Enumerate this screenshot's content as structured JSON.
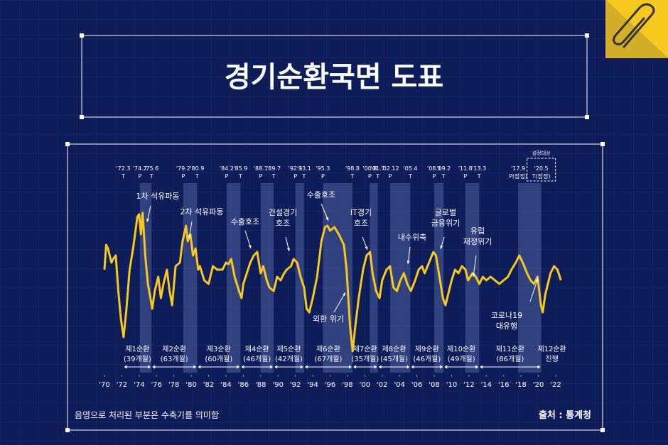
{
  "chart_data": {
    "type": "line",
    "title": "경기순환국면 도표",
    "color": "#f7c81e",
    "x": [
      1970.0,
      1970.2,
      1970.4,
      1970.8,
      1971.0,
      1971.3,
      1971.6,
      1971.9,
      1972.2,
      1972.5,
      1972.9,
      1973.3,
      1973.8,
      1974.0,
      1974.2,
      1974.4,
      1974.7,
      1975.0,
      1975.3,
      1975.5,
      1975.8,
      1976.2,
      1976.5,
      1976.8,
      1977.2,
      1977.5,
      1977.8,
      1978.2,
      1978.7,
      1979.0,
      1979.4,
      1979.6,
      1979.9,
      1980.2,
      1980.5,
      1980.8,
      1981.0,
      1981.5,
      1982.0,
      1982.5,
      1983.0,
      1983.6,
      1984.0,
      1984.3,
      1984.6,
      1985.0,
      1985.5,
      1985.8,
      1986.0,
      1986.4,
      1986.8,
      1987.2,
      1987.6,
      1988.0,
      1988.3,
      1988.7,
      1989.0,
      1989.5,
      1989.9,
      1990.3,
      1990.7,
      1991.0,
      1991.5,
      1991.8,
      1992.2,
      1992.6,
      1993.0,
      1993.3,
      1993.6,
      1994.0,
      1994.5,
      1995.0,
      1995.4,
      1995.7,
      1996.0,
      1996.5,
      1997.0,
      1997.6,
      1997.9,
      1998.3,
      1998.6,
      1998.9,
      1999.3,
      1999.8,
      2000.2,
      2000.6,
      2000.9,
      2001.3,
      2001.7,
      2002.0,
      2002.5,
      2002.9,
      2003.3,
      2003.7,
      2004.1,
      2004.5,
      2004.9,
      2005.3,
      2005.8,
      2006.2,
      2006.6,
      2006.9,
      2007.4,
      2007.9,
      2008.2,
      2008.6,
      2009.0,
      2009.3,
      2009.7,
      2010.0,
      2010.4,
      2010.8,
      2011.2,
      2011.6,
      2011.9,
      2012.4,
      2012.8,
      2013.2,
      2013.6,
      2014.0,
      2014.5,
      2015.0,
      2015.5,
      2016.0,
      2016.5,
      2016.9,
      2017.4,
      2017.8,
      2018.2,
      2018.7,
      2019.1,
      2019.5,
      2019.9,
      2020.3,
      2020.5,
      2020.8,
      2021.1,
      2021.4,
      2021.8,
      2022.2,
      2022.6
    ],
    "values": [
      60,
      77.5,
      75,
      65,
      67.5,
      70,
      45,
      25,
      12.5,
      30,
      60,
      75,
      97.5,
      99,
      85,
      100,
      70,
      50,
      40,
      32.5,
      45,
      55,
      40,
      50,
      60,
      45,
      35,
      62.5,
      65,
      80,
      91,
      80,
      85,
      70,
      75,
      60,
      62.5,
      52.5,
      50,
      62.5,
      60,
      60,
      65,
      64,
      67.5,
      55,
      45,
      40,
      50,
      57.5,
      65,
      70,
      72.5,
      57.5,
      62.5,
      52.5,
      47.5,
      45,
      55,
      52.5,
      57.5,
      60,
      62.5,
      67.5,
      65,
      55,
      47.5,
      32.5,
      30,
      40,
      55,
      80,
      90,
      91,
      87.5,
      90,
      85,
      77.5,
      60,
      20,
      2.5,
      20,
      40,
      60,
      70,
      72.5,
      57.5,
      45,
      40,
      52.5,
      60,
      62.5,
      47.5,
      45,
      52.5,
      57.5,
      50,
      45,
      52.5,
      60,
      62.5,
      57.5,
      65,
      72.5,
      70,
      55,
      40,
      35,
      45,
      52.5,
      60,
      57.5,
      62.5,
      60,
      52.5,
      57.5,
      55,
      50,
      55,
      52.5,
      55,
      52.5,
      50,
      52.5,
      55,
      60,
      65,
      70,
      65,
      57.5,
      52.5,
      50,
      55,
      35,
      30,
      42.5,
      50,
      57.5,
      62.5,
      60,
      52.5
    ],
    "xlim": [
      1970,
      2023
    ],
    "xticks": [
      {
        "value": 1970,
        "label": "'70"
      },
      {
        "value": 1972,
        "label": "'72"
      },
      {
        "value": 1974,
        "label": "'74"
      },
      {
        "value": 1976,
        "label": "'76"
      },
      {
        "value": 1978,
        "label": "'78"
      },
      {
        "value": 1980,
        "label": "'80"
      },
      {
        "value": 1982,
        "label": "'82"
      },
      {
        "value": 1984,
        "label": "'84"
      },
      {
        "value": 1986,
        "label": "'86"
      },
      {
        "value": 1988,
        "label": "'88"
      },
      {
        "value": 1990,
        "label": "'90"
      },
      {
        "value": 1992,
        "label": "'92"
      },
      {
        "value": 1994,
        "label": "'94"
      },
      {
        "value": 1996,
        "label": "'96"
      },
      {
        "value": 1998,
        "label": "'98"
      },
      {
        "value": 2000,
        "label": "'00"
      },
      {
        "value": 2002,
        "label": "'02"
      },
      {
        "value": 2004,
        "label": "'04"
      },
      {
        "value": 2006,
        "label": "'06"
      },
      {
        "value": 2008,
        "label": "'08"
      },
      {
        "value": 2010,
        "label": "'10"
      },
      {
        "value": 2012,
        "label": "'12"
      },
      {
        "value": 2014,
        "label": "'14"
      },
      {
        "value": 2016,
        "label": "'16"
      },
      {
        "value": 2018,
        "label": "'18"
      },
      {
        "value": 2020,
        "label": "'20"
      },
      {
        "value": 2022,
        "label": "'22"
      }
    ],
    "turning_points": [
      {
        "date": "'72.3",
        "phase": "T",
        "x": 1972.17
      },
      {
        "date": "'74.2",
        "phase": "P",
        "x": 1974.08
      },
      {
        "date": "'75.6",
        "phase": "T",
        "x": 1975.42
      },
      {
        "date": "'79.2",
        "phase": "P",
        "x": 1979.08
      },
      {
        "date": "'80.9",
        "phase": "T",
        "x": 1980.67
      },
      {
        "date": "'84.2",
        "phase": "P",
        "x": 1984.08
      },
      {
        "date": "'85.9",
        "phase": "T",
        "x": 1985.67
      },
      {
        "date": "'88.1",
        "phase": "P",
        "x": 1988.0
      },
      {
        "date": "'89.7",
        "phase": "T",
        "x": 1989.5
      },
      {
        "date": "'92.1",
        "phase": "P",
        "x": 1992.0
      },
      {
        "date": "'93.1",
        "phase": "T",
        "x": 1993.0
      },
      {
        "date": "'95.3",
        "phase": "P",
        "x": 1995.17
      },
      {
        "date": "'98.8",
        "phase": "T",
        "x": 1998.58
      },
      {
        "date": "'00.8",
        "phase": "P",
        "x": 2000.58
      },
      {
        "date": "'01.7",
        "phase": "T",
        "x": 2001.5
      },
      {
        "date": "'02.12",
        "phase": "P",
        "x": 2002.92
      },
      {
        "date": "'05.4",
        "phase": "T",
        "x": 2005.25
      },
      {
        "date": "'08.1",
        "phase": "P",
        "x": 2008.0
      },
      {
        "date": "'09.2",
        "phase": "T",
        "x": 2009.08
      },
      {
        "date": "'11.8",
        "phase": "P",
        "x": 2011.58
      },
      {
        "date": "'13.3",
        "phase": "T",
        "x": 2013.17
      },
      {
        "date": "'17.9",
        "phase": "P(잠정)",
        "x": 2017.67
      },
      {
        "date": "'20.5",
        "phase": "T(잠정)",
        "x": 2020.33
      }
    ],
    "provisional_label": "설정대상",
    "cycles": [
      {
        "name": "제1순환",
        "note": "(39개월)"
      },
      {
        "name": "제2순환",
        "note": "(63개월)"
      },
      {
        "name": "제3순환",
        "note": "(60개월)"
      },
      {
        "name": "제4순환",
        "note": "(46개월)"
      },
      {
        "name": "제5순환",
        "note": "(42개월)"
      },
      {
        "name": "제6순환",
        "note": "(67개월)"
      },
      {
        "name": "제7순환",
        "note": "(35개월)"
      },
      {
        "name": "제8순환",
        "note": "(45개월)"
      },
      {
        "name": "제9순환",
        "note": "(46개월)"
      },
      {
        "name": "제10순환",
        "note": "(49개월)"
      },
      {
        "name": "제11순환",
        "note": "(86개월)"
      },
      {
        "name": "제12순환",
        "note": "진행"
      }
    ],
    "annotations": [
      {
        "lines": [
          "1차 석유파동"
        ]
      },
      {
        "lines": [
          "2차 석유파동"
        ]
      },
      {
        "lines": [
          "수출호조"
        ]
      },
      {
        "lines": [
          "건설경기",
          "호조"
        ]
      },
      {
        "lines": [
          "수출호조"
        ]
      },
      {
        "lines": [
          "IT경기",
          "호조"
        ]
      },
      {
        "lines": [
          "외환 위기"
        ]
      },
      {
        "lines": [
          "내수위축"
        ]
      },
      {
        "lines": [
          "글로벌",
          "금융위기"
        ]
      },
      {
        "lines": [
          "유럽",
          "재정위기"
        ]
      },
      {
        "lines": [
          "코로나19",
          "대유행"
        ]
      }
    ],
    "note": "음영으로 처리된 부분은 수축기를 의미함",
    "source": "출처 : 통계청"
  }
}
